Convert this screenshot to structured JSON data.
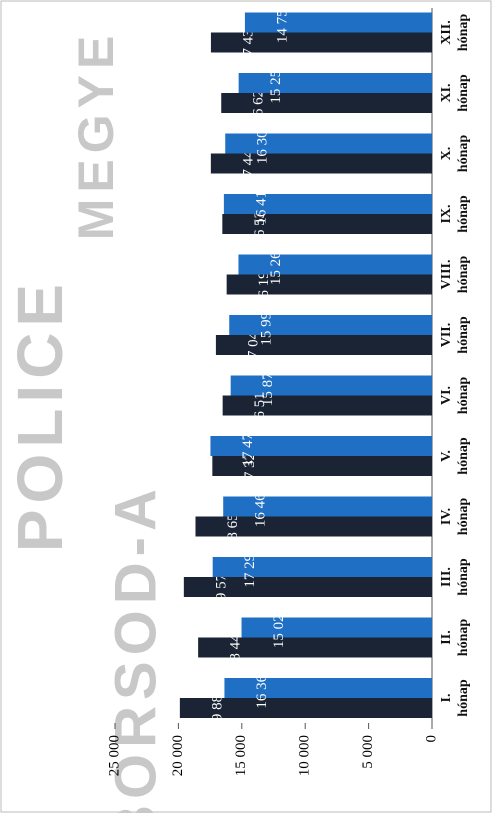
{
  "chart_data": {
    "type": "bar",
    "categories": [
      "I.\nhónap",
      "II.\nhónap",
      "III.\nhónap",
      "IV.\nhónap",
      "V.\nhónap",
      "VI.\nhónap",
      "VII.\nhónap",
      "VIII.\nhónap",
      "IX.\nhónap",
      "X.\nhónap",
      "XI.\nhónap",
      "XII.\nhónap"
    ],
    "series": [
      {
        "color": "#1b2434",
        "values": [
          19884,
          18444,
          19571,
          18652,
          17323,
          16510,
          17042,
          16195,
          16536,
          17441,
          16622,
          17435
        ],
        "value_labels": [
          "19 884",
          "18 444",
          "19 571",
          "18 652",
          "17 323",
          "16 510",
          "17 042",
          "16 195",
          "16 536",
          "17 441",
          "16 622",
          "17 435"
        ]
      },
      {
        "color": "#1f6fc4",
        "values": [
          16369,
          15021,
          17296,
          16466,
          17472,
          15878,
          15991,
          15263,
          16413,
          16306,
          15250,
          14755
        ],
        "value_labels": [
          "16 369",
          "15 021",
          "17 296",
          "16 466",
          "17 472",
          "15 878",
          "15 991",
          "15 263",
          "16 413",
          "16 306",
          "15 250",
          "14 755"
        ]
      }
    ],
    "ylim": [
      0,
      25000
    ],
    "yticks": [
      0,
      {
        "value": 5000,
        "label": "5 000"
      },
      {
        "value": 10000,
        "label": "10 000"
      },
      {
        "value": 15000,
        "label": "15 000"
      },
      {
        "value": 20000,
        "label": "20 000"
      },
      {
        "value": 25000,
        "label": "25 000"
      }
    ],
    "grid": false,
    "watermarks": [
      "POLICE",
      "BORSOD-A",
      "MEGYE"
    ]
  }
}
